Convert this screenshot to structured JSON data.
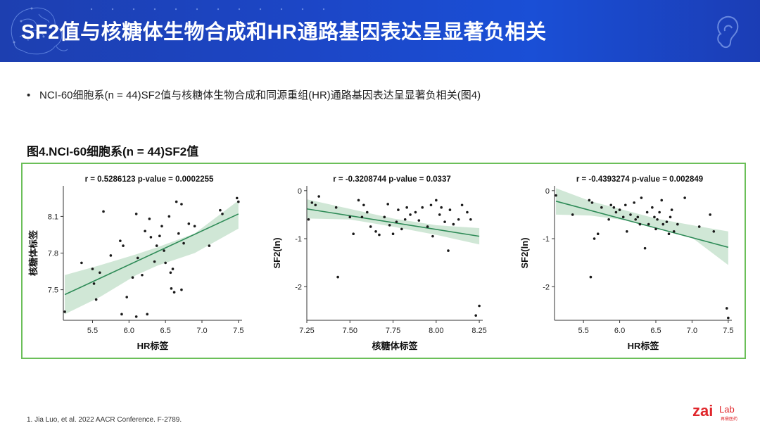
{
  "header": {
    "title": "SF2值与核糖体生物合成和HR通路基因表达呈显著负相关"
  },
  "bullet": {
    "marker": "•",
    "text": "NCI-60细胞系(n = 44)SF2值与核糖体生物合成和同源重组(HR)通路基因表达呈显著负相关(图4)"
  },
  "figure": {
    "title": "图4.NCI-60细胞系(n = 44)SF2值"
  },
  "footnote": {
    "text": "1.   Jia Luo, et al. 2022 AACR Conference. F-2789."
  },
  "logo": {
    "text": "zai",
    "lab": "Lab",
    "sub": "再鼎医药"
  },
  "colors": {
    "header_bg": "#1c46c6",
    "panel_border": "#6bbf59",
    "reg_line": "#2e8b57",
    "ci_band": "#c8e3cf",
    "points": "#1a1a1a"
  },
  "chart_data": [
    {
      "type": "scatter",
      "title": "r = 0.5286123   p-value = 0.0002255",
      "xlabel": "HR标签",
      "ylabel": "核糖体标签",
      "xlim": [
        5.1,
        7.55
      ],
      "ylim": [
        7.25,
        8.35
      ],
      "xticks": [
        5.5,
        6.0,
        6.5,
        7.0,
        7.5
      ],
      "xtick_labels": [
        "5.5",
        "6.0",
        "6.5",
        "7.0",
        "7.5"
      ],
      "yticks": [
        7.5,
        7.8,
        8.1
      ],
      "ytick_labels": [
        "7.5",
        "7.8",
        "8.1"
      ],
      "regression": {
        "x": [
          5.12,
          7.5
        ],
        "y": [
          7.46,
          8.12
        ]
      },
      "ci": {
        "x": [
          5.12,
          5.6,
          6.1,
          6.4,
          6.9,
          7.5
        ],
        "upper": [
          7.62,
          7.7,
          7.79,
          7.85,
          7.96,
          8.23
        ],
        "lower": [
          7.3,
          7.44,
          7.62,
          7.7,
          7.8,
          8.0
        ]
      },
      "points": [
        [
          5.12,
          7.32
        ],
        [
          5.35,
          7.72
        ],
        [
          5.5,
          7.67
        ],
        [
          5.52,
          7.55
        ],
        [
          5.55,
          7.42
        ],
        [
          5.6,
          7.64
        ],
        [
          5.65,
          8.14
        ],
        [
          5.75,
          7.78
        ],
        [
          5.88,
          7.9
        ],
        [
          5.9,
          7.3
        ],
        [
          5.92,
          7.86
        ],
        [
          5.97,
          7.44
        ],
        [
          6.05,
          7.6
        ],
        [
          6.1,
          8.12
        ],
        [
          6.12,
          7.76
        ],
        [
          6.1,
          7.28
        ],
        [
          6.18,
          7.62
        ],
        [
          6.22,
          7.98
        ],
        [
          6.25,
          7.3
        ],
        [
          6.28,
          8.08
        ],
        [
          6.3,
          7.93
        ],
        [
          6.35,
          7.73
        ],
        [
          6.38,
          7.86
        ],
        [
          6.42,
          7.94
        ],
        [
          6.45,
          8.02
        ],
        [
          6.48,
          7.82
        ],
        [
          6.5,
          7.72
        ],
        [
          6.55,
          8.1
        ],
        [
          6.57,
          7.64
        ],
        [
          6.58,
          7.51
        ],
        [
          6.6,
          7.67
        ],
        [
          6.62,
          7.48
        ],
        [
          6.65,
          8.22
        ],
        [
          6.68,
          7.96
        ],
        [
          6.72,
          8.2
        ],
        [
          6.72,
          7.5
        ],
        [
          6.75,
          7.88
        ],
        [
          6.82,
          8.04
        ],
        [
          6.9,
          8.02
        ],
        [
          7.1,
          7.86
        ],
        [
          7.25,
          8.15
        ],
        [
          7.28,
          8.12
        ],
        [
          7.48,
          8.25
        ],
        [
          7.5,
          8.22
        ]
      ]
    },
    {
      "type": "scatter",
      "title": "r = -0.3208744   p-value = 0.0337",
      "xlabel": "核糖体标签",
      "ylabel": "SF2(ln)",
      "xlim": [
        7.25,
        8.27
      ],
      "ylim": [
        -2.7,
        0.1
      ],
      "xticks": [
        7.25,
        7.5,
        7.75,
        8.0,
        8.25
      ],
      "xtick_labels": [
        "7.25",
        "7.50",
        "7.75",
        "8.00",
        "8.25"
      ],
      "yticks": [
        0,
        -1,
        -2
      ],
      "ytick_labels": [
        "0",
        "-1",
        "-2"
      ],
      "regression": {
        "x": [
          7.25,
          8.25
        ],
        "y": [
          -0.38,
          -0.95
        ]
      },
      "ci": {
        "x": [
          7.25,
          7.5,
          7.75,
          8.0,
          8.25
        ],
        "upper": [
          -0.18,
          -0.38,
          -0.58,
          -0.72,
          -0.78
        ],
        "lower": [
          -0.58,
          -0.6,
          -0.75,
          -0.92,
          -1.12
        ]
      },
      "points": [
        [
          7.26,
          -0.6
        ],
        [
          7.28,
          -0.25
        ],
        [
          7.3,
          -0.3
        ],
        [
          7.32,
          -0.12
        ],
        [
          7.42,
          -0.35
        ],
        [
          7.43,
          -1.8
        ],
        [
          7.5,
          -0.55
        ],
        [
          7.52,
          -0.9
        ],
        [
          7.55,
          -0.2
        ],
        [
          7.57,
          -0.55
        ],
        [
          7.58,
          -0.3
        ],
        [
          7.6,
          -0.45
        ],
        [
          7.62,
          -0.75
        ],
        [
          7.65,
          -0.85
        ],
        [
          7.67,
          -0.92
        ],
        [
          7.7,
          -0.55
        ],
        [
          7.72,
          -0.28
        ],
        [
          7.73,
          -0.72
        ],
        [
          7.75,
          -0.9
        ],
        [
          7.77,
          -0.65
        ],
        [
          7.78,
          -0.4
        ],
        [
          7.8,
          -0.8
        ],
        [
          7.82,
          -0.6
        ],
        [
          7.83,
          -0.35
        ],
        [
          7.85,
          -0.5
        ],
        [
          7.88,
          -0.45
        ],
        [
          7.9,
          -0.62
        ],
        [
          7.92,
          -0.35
        ],
        [
          7.95,
          -0.75
        ],
        [
          7.97,
          -0.3
        ],
        [
          7.98,
          -0.95
        ],
        [
          8.0,
          -0.2
        ],
        [
          8.02,
          -0.5
        ],
        [
          8.03,
          -0.35
        ],
        [
          8.05,
          -0.65
        ],
        [
          8.07,
          -1.25
        ],
        [
          8.08,
          -0.4
        ],
        [
          8.1,
          -0.7
        ],
        [
          8.13,
          -0.6
        ],
        [
          8.15,
          -0.3
        ],
        [
          8.18,
          -0.45
        ],
        [
          8.2,
          -0.6
        ],
        [
          8.23,
          -2.6
        ],
        [
          8.25,
          -2.4
        ]
      ]
    },
    {
      "type": "scatter",
      "title": "r = -0.4393274   p-value = 0.002849",
      "xlabel": "HR标签",
      "ylabel": "SF2(ln)",
      "xlim": [
        5.1,
        7.55
      ],
      "ylim": [
        -2.7,
        0.1
      ],
      "xticks": [
        5.5,
        6.0,
        6.5,
        7.0,
        7.5
      ],
      "xtick_labels": [
        "5.5",
        "6.0",
        "6.5",
        "7.0",
        "7.5"
      ],
      "yticks": [
        0,
        -1,
        -2
      ],
      "ytick_labels": [
        "0",
        "-1",
        "-2"
      ],
      "regression": {
        "x": [
          5.12,
          7.5
        ],
        "y": [
          -0.22,
          -1.18
        ]
      },
      "ci": {
        "x": [
          5.12,
          5.6,
          6.1,
          6.5,
          7.0,
          7.5
        ],
        "upper": [
          0.05,
          -0.22,
          -0.42,
          -0.58,
          -0.72,
          -0.85
        ],
        "lower": [
          -0.5,
          -0.52,
          -0.62,
          -0.76,
          -0.98,
          -1.55
        ]
      },
      "points": [
        [
          5.12,
          -0.1
        ],
        [
          5.35,
          -0.5
        ],
        [
          5.58,
          -0.2
        ],
        [
          5.6,
          -1.8
        ],
        [
          5.62,
          -0.25
        ],
        [
          5.65,
          -1.0
        ],
        [
          5.7,
          -0.9
        ],
        [
          5.75,
          -0.35
        ],
        [
          5.85,
          -0.6
        ],
        [
          5.88,
          -0.3
        ],
        [
          5.92,
          -0.35
        ],
        [
          5.95,
          -0.45
        ],
        [
          6.0,
          -0.4
        ],
        [
          6.05,
          -0.55
        ],
        [
          6.08,
          -0.3
        ],
        [
          6.1,
          -0.85
        ],
        [
          6.15,
          -0.5
        ],
        [
          6.2,
          -0.25
        ],
        [
          6.22,
          -0.6
        ],
        [
          6.25,
          -0.55
        ],
        [
          6.28,
          -0.7
        ],
        [
          6.3,
          -0.15
        ],
        [
          6.35,
          -1.2
        ],
        [
          6.38,
          -0.45
        ],
        [
          6.4,
          -0.7
        ],
        [
          6.45,
          -0.35
        ],
        [
          6.48,
          -0.55
        ],
        [
          6.5,
          -0.8
        ],
        [
          6.52,
          -0.6
        ],
        [
          6.55,
          -0.45
        ],
        [
          6.58,
          -0.2
        ],
        [
          6.6,
          -0.7
        ],
        [
          6.65,
          -0.65
        ],
        [
          6.68,
          -0.9
        ],
        [
          6.7,
          -0.55
        ],
        [
          6.72,
          -0.4
        ],
        [
          6.75,
          -0.85
        ],
        [
          6.8,
          -0.7
        ],
        [
          6.9,
          -0.15
        ],
        [
          7.1,
          -0.75
        ],
        [
          7.25,
          -0.5
        ],
        [
          7.3,
          -0.85
        ],
        [
          7.48,
          -2.45
        ],
        [
          7.5,
          -2.65
        ]
      ]
    }
  ]
}
